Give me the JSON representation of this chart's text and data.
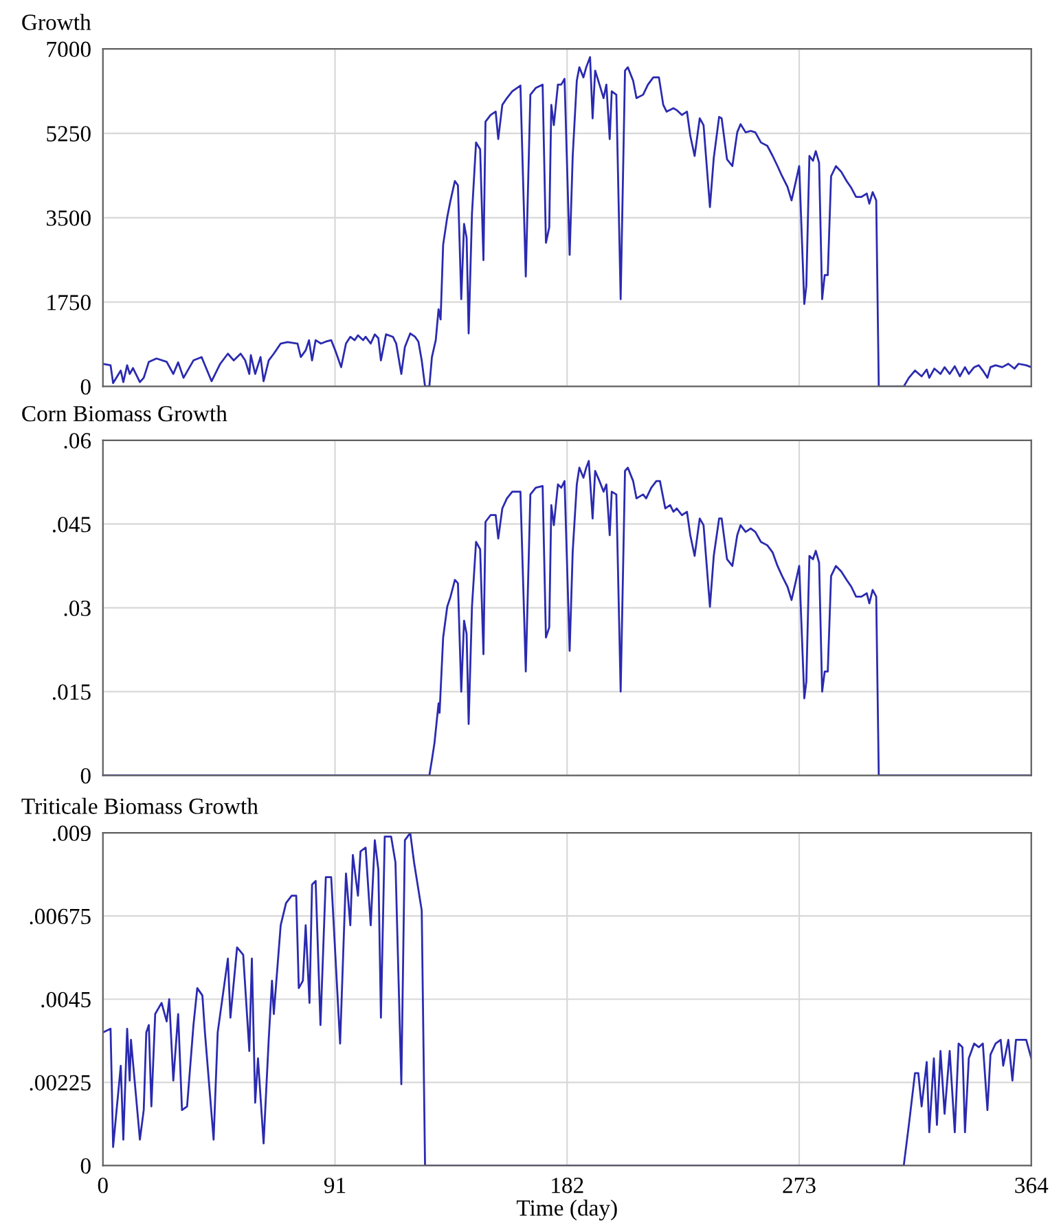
{
  "chart_data": [
    {
      "type": "line",
      "title": "Growth",
      "xlim": [
        0,
        364
      ],
      "xticks": [
        0,
        91,
        182,
        273,
        364
      ],
      "ylim": [
        0,
        7000
      ],
      "yticks": [
        0,
        1750,
        3500,
        5250,
        7000
      ],
      "grid": true,
      "tick_labels": "y",
      "marker": "none",
      "line_style": "solid",
      "series": [
        {
          "color": "#2a2ab0",
          "x": [
            0,
            3,
            4,
            7,
            8,
            9.5,
            10.5,
            11.8,
            14.5,
            16,
            18,
            21,
            25,
            27.6,
            29.5,
            31.6,
            35.5,
            38.7,
            40,
            42.6,
            46,
            49,
            51.3,
            54,
            55.8,
            57.4,
            58,
            59.7,
            61.8,
            63,
            65,
            67,
            69.7,
            72.4,
            76.3,
            77.6,
            79.5,
            80.8,
            82,
            83.4,
            85.5,
            87.4,
            89.5,
            91.3,
            93.4,
            95.3,
            97,
            98.7,
            100,
            102,
            103,
            105,
            106.6,
            108,
            109,
            111,
            113.7,
            115,
            117,
            118.4,
            120.5,
            122.4,
            123.7,
            125,
            126.3,
            128,
            129,
            130.5,
            131.6,
            132.4,
            133.4,
            135,
            136.3,
            138,
            139.2,
            140.5,
            141.6,
            142.6,
            143.4,
            144.7,
            146.3,
            147.9,
            149.2,
            150,
            152,
            154,
            155,
            156.6,
            158.4,
            160.5,
            163.7,
            165.8,
            167.6,
            169.7,
            172.4,
            173.7,
            175,
            175.8,
            176.8,
            178.4,
            179.7,
            181,
            183,
            184.2,
            185.8,
            186.8,
            188.4,
            189.5,
            191,
            192,
            193,
            194.7,
            196.3,
            197.4,
            198.7,
            199.5,
            201.3,
            203,
            204.7,
            205.8,
            207.9,
            209.2,
            211.8,
            213.7,
            215.8,
            218,
            219.7,
            221,
            223.7,
            225,
            227,
            229,
            230.3,
            232,
            234,
            235.5,
            238,
            239.5,
            241.6,
            242.6,
            244.7,
            246.8,
            248.7,
            250,
            252,
            254,
            255.8,
            258,
            260.5,
            262.6,
            264.5,
            266.3,
            268.4,
            270,
            271.8,
            273,
            275,
            275.8,
            277,
            278.4,
            279.5,
            280.8,
            282,
            283,
            284.2,
            285.5,
            287.4,
            289.5,
            291.6,
            293.4,
            295.3,
            297.4,
            299.5,
            300.5,
            301.8,
            303.2,
            304.2,
            314,
            316,
            318.4,
            321,
            323,
            324,
            326,
            328.4,
            330,
            332,
            334,
            336,
            338,
            339.5,
            341.6,
            343.4,
            345,
            346.8,
            348,
            350,
            352.6,
            355,
            357.4,
            359,
            362,
            364
          ],
          "values": [
            470,
            440,
            70,
            330,
            90,
            440,
            260,
            380,
            90,
            180,
            510,
            580,
            510,
            260,
            500,
            180,
            540,
            610,
            440,
            110,
            470,
            680,
            540,
            680,
            540,
            260,
            650,
            260,
            610,
            110,
            540,
            680,
            890,
            920,
            890,
            610,
            750,
            960,
            540,
            960,
            890,
            930,
            960,
            720,
            400,
            890,
            1030,
            960,
            1060,
            960,
            1030,
            890,
            1080,
            1000,
            540,
            1080,
            1030,
            890,
            260,
            820,
            1100,
            1030,
            930,
            540,
            0,
            10,
            610,
            960,
            1600,
            1390,
            2940,
            3510,
            3860,
            4260,
            4170,
            1810,
            3370,
            3080,
            1100,
            3580,
            5060,
            4920,
            2620,
            5490,
            5630,
            5700,
            5130,
            5840,
            5980,
            6120,
            6240,
            2280,
            6050,
            6190,
            6260,
            2980,
            3300,
            5840,
            5420,
            6260,
            6260,
            6380,
            2730,
            4780,
            6340,
            6620,
            6410,
            6620,
            6830,
            5560,
            6550,
            6260,
            5980,
            6260,
            5130,
            6120,
            6050,
            1810,
            6550,
            6620,
            6340,
            5980,
            6050,
            6260,
            6410,
            6410,
            5840,
            5700,
            5770,
            5730,
            5630,
            5700,
            5200,
            4780,
            5560,
            5420,
            3720,
            4740,
            5590,
            5560,
            4710,
            4570,
            5270,
            5440,
            5270,
            5300,
            5270,
            5060,
            4990,
            4780,
            4570,
            4360,
            4140,
            3860,
            4280,
            4570,
            1710,
            2090,
            4780,
            4680,
            4880,
            4640,
            1810,
            2310,
            2310,
            4360,
            4570,
            4450,
            4260,
            4120,
            3930,
            3930,
            4000,
            3790,
            4030,
            3860,
            0,
            0,
            180,
            330,
            210,
            350,
            180,
            370,
            260,
            400,
            260,
            420,
            210,
            400,
            260,
            400,
            440,
            330,
            180,
            400,
            440,
            400,
            470,
            370,
            470,
            440,
            400
          ]
        }
      ]
    },
    {
      "type": "line",
      "title": "Corn Biomass Growth",
      "xlim": [
        0,
        364
      ],
      "xticks": [
        0,
        91,
        182,
        273,
        364
      ],
      "ylim": [
        0,
        0.06
      ],
      "yticks": [
        0,
        {
          "value": 0.015,
          "label": ".015"
        },
        {
          "value": 0.03,
          "label": ".03"
        },
        {
          "value": 0.045,
          "label": ".045"
        },
        {
          "value": 0.06,
          "label": ".06"
        }
      ],
      "grid": true,
      "tick_labels": "y",
      "marker": "none",
      "line_style": "solid",
      "series": [
        {
          "color": "#2a2ab0",
          "x": [
            0,
            128,
            129,
            130,
            131.6,
            132,
            133.4,
            135,
            136.3,
            138,
            139.2,
            140.5,
            141.6,
            142.6,
            143.4,
            144.7,
            146.3,
            147.9,
            149.2,
            150,
            152,
            154,
            155,
            156.6,
            158.4,
            160.5,
            163.7,
            165.8,
            167.6,
            169.7,
            172.4,
            173.7,
            175,
            175.8,
            176.8,
            178.4,
            179.7,
            181,
            183,
            184.2,
            185.8,
            186.8,
            188.4,
            189.5,
            190.5,
            192,
            193,
            194.7,
            196.3,
            197.4,
            198.7,
            199.5,
            201.3,
            203,
            204.7,
            205.8,
            207.9,
            209.2,
            211.8,
            213,
            215,
            217,
            218.4,
            220.5,
            222.4,
            223.7,
            225,
            227,
            229,
            230.3,
            232,
            234,
            235.5,
            238,
            239.5,
            241.6,
            242.6,
            244.7,
            246.8,
            248.7,
            250,
            252,
            254,
            255.8,
            258,
            260.5,
            262.6,
            264.5,
            266.3,
            268.4,
            270,
            271.8,
            273,
            275,
            275.8,
            277,
            278.4,
            279.5,
            280.8,
            282,
            283,
            284.2,
            285.5,
            287.4,
            289.5,
            291.6,
            293.4,
            295.3,
            297.4,
            299.5,
            300.5,
            301.8,
            303.2,
            304.2,
            364
          ],
          "values": [
            0,
            0,
            0.0028,
            0.0058,
            0.0129,
            0.0112,
            0.0247,
            0.0302,
            0.032,
            0.035,
            0.0344,
            0.015,
            0.0277,
            0.0253,
            0.0092,
            0.0302,
            0.0418,
            0.0405,
            0.0217,
            0.0454,
            0.0466,
            0.0466,
            0.0424,
            0.0478,
            0.0496,
            0.0508,
            0.0508,
            0.0186,
            0.0503,
            0.0515,
            0.0518,
            0.0247,
            0.0265,
            0.0484,
            0.0448,
            0.0521,
            0.0515,
            0.0527,
            0.0223,
            0.0401,
            0.0521,
            0.0551,
            0.0533,
            0.0551,
            0.0563,
            0.046,
            0.0545,
            0.0527,
            0.0508,
            0.0521,
            0.043,
            0.0508,
            0.0503,
            0.015,
            0.0545,
            0.0551,
            0.0527,
            0.0496,
            0.0503,
            0.0496,
            0.0515,
            0.0527,
            0.0527,
            0.0478,
            0.0484,
            0.0472,
            0.0478,
            0.0466,
            0.0472,
            0.043,
            0.0393,
            0.046,
            0.0448,
            0.0302,
            0.0393,
            0.046,
            0.046,
            0.0387,
            0.0375,
            0.043,
            0.0448,
            0.0436,
            0.0442,
            0.0436,
            0.0418,
            0.0412,
            0.0399,
            0.0375,
            0.0357,
            0.0338,
            0.0314,
            0.035,
            0.0375,
            0.0138,
            0.0168,
            0.0393,
            0.0387,
            0.0402,
            0.0381,
            0.015,
            0.0186,
            0.0186,
            0.0357,
            0.0375,
            0.0365,
            0.035,
            0.0338,
            0.032,
            0.032,
            0.0326,
            0.0308,
            0.0332,
            0.032,
            0,
            0
          ]
        }
      ]
    },
    {
      "type": "line",
      "title": "Triticale Biomass Growth",
      "xlabel": "Time (day)",
      "xlim": [
        0,
        364
      ],
      "xticks": [
        0,
        91,
        182,
        273,
        364
      ],
      "ylim": [
        0,
        0.009
      ],
      "yticks": [
        0,
        {
          "value": 0.00225,
          "label": ".00225"
        },
        {
          "value": 0.0045,
          "label": ".0045"
        },
        {
          "value": 0.00675,
          "label": ".00675"
        },
        {
          "value": 0.009,
          "label": ".009"
        }
      ],
      "grid": true,
      "marker": "none",
      "line_style": "solid",
      "series": [
        {
          "color": "#2a2ab0",
          "x": [
            0,
            3,
            4,
            7,
            8,
            9.5,
            10.5,
            11,
            14.5,
            16,
            17,
            18,
            19,
            20.5,
            23,
            25,
            26,
            27.6,
            29.5,
            31,
            33,
            35.5,
            37,
            39,
            40,
            43.4,
            45,
            49,
            50,
            52.6,
            55,
            57.4,
            58.4,
            59.7,
            60.8,
            63,
            65,
            66.3,
            67,
            69.7,
            71.8,
            74,
            75.8,
            76.8,
            78.4,
            79.5,
            81,
            82,
            83.4,
            85.3,
            87.4,
            89.5,
            93,
            95.3,
            97,
            98,
            100,
            101,
            103,
            105,
            106.6,
            108,
            109,
            110.5,
            113,
            114.7,
            117,
            118.4,
            120.5,
            122,
            125,
            126.3,
            314,
            316,
            318.4,
            319.7,
            321,
            323,
            324,
            325.8,
            327,
            328.4,
            330,
            332,
            334,
            335.5,
            337,
            338,
            339.5,
            341.6,
            343.4,
            345,
            346.8,
            348,
            350,
            352,
            353,
            355,
            356.6,
            358,
            360,
            362,
            364
          ],
          "values": [
            0.0036,
            0.0037,
            0.0005,
            0.0027,
            0.0007,
            0.0037,
            0.0023,
            0.0034,
            0.0007,
            0.0015,
            0.0036,
            0.0038,
            0.0016,
            0.0041,
            0.0044,
            0.0039,
            0.0045,
            0.0023,
            0.0041,
            0.0015,
            0.0016,
            0.0038,
            0.0048,
            0.0046,
            0.0036,
            0.0007,
            0.0036,
            0.0056,
            0.004,
            0.0059,
            0.0057,
            0.0031,
            0.0056,
            0.0017,
            0.0029,
            0.0006,
            0.0034,
            0.005,
            0.0041,
            0.0065,
            0.0071,
            0.0073,
            0.0073,
            0.0048,
            0.005,
            0.0065,
            0.0044,
            0.0076,
            0.0077,
            0.0038,
            0.0078,
            0.0078,
            0.0033,
            0.0079,
            0.0065,
            0.0084,
            0.0073,
            0.0085,
            0.0086,
            0.0065,
            0.0088,
            0.008,
            0.004,
            0.0089,
            0.0089,
            0.0082,
            0.0022,
            0.0088,
            0.009,
            0.0082,
            0.0069,
            0,
            0,
            0.0011,
            0.0025,
            0.0025,
            0.0016,
            0.0028,
            0.0009,
            0.0029,
            0.0011,
            0.0031,
            0.0014,
            0.0031,
            0.0009,
            0.0033,
            0.0032,
            0.0009,
            0.0029,
            0.0033,
            0.0032,
            0.0033,
            0.0015,
            0.003,
            0.0033,
            0.0034,
            0.0027,
            0.0034,
            0.0023,
            0.0034,
            0.0034,
            0.0034,
            0.0029
          ]
        }
      ]
    }
  ]
}
